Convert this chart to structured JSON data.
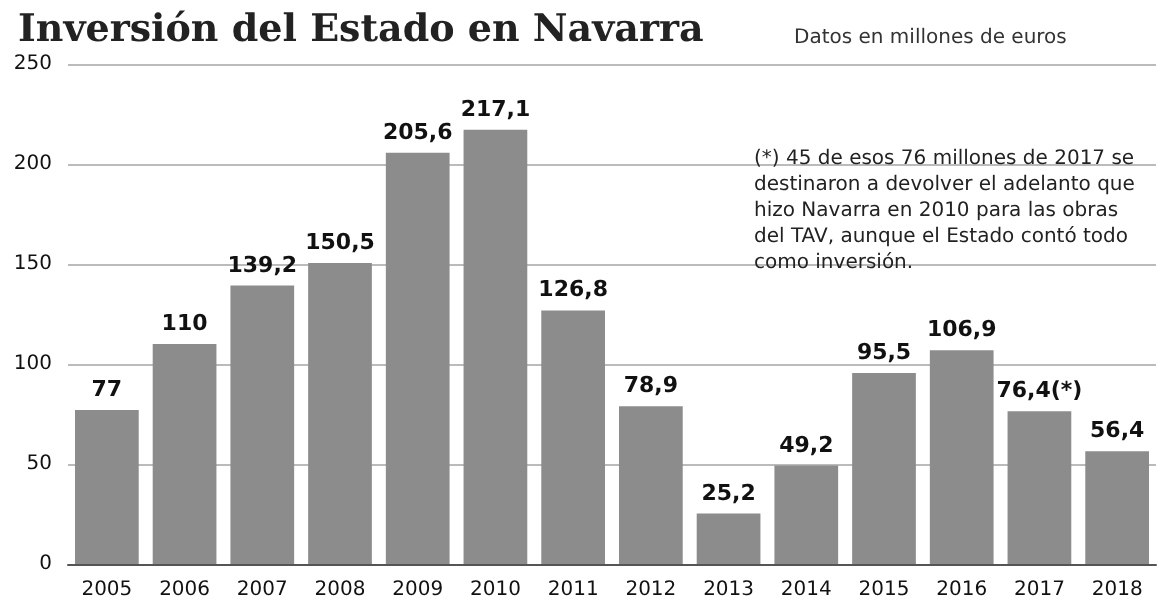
{
  "chart_data": {
    "type": "bar",
    "title": "Inversión del Estado en Navarra",
    "subtitle": "Datos en millones de euros",
    "categories": [
      "2005",
      "2006",
      "2007",
      "2008",
      "2009",
      "2010",
      "2011",
      "2012",
      "2013",
      "2014",
      "2015",
      "2016",
      "2017",
      "2018"
    ],
    "values": [
      77,
      110,
      139.2,
      150.5,
      205.6,
      217.1,
      126.8,
      78.9,
      25.2,
      49.2,
      95.5,
      106.9,
      76.4,
      56.4
    ],
    "value_labels": [
      "77",
      "110",
      "139,2",
      "150,5",
      "205,6",
      "217,1",
      "126,8",
      "78,9",
      "25,2",
      "49,2",
      "95,5",
      "106,9",
      "76,4(*)",
      "56,4"
    ],
    "color": "#8c8c8c",
    "ylim": [
      0,
      250
    ],
    "yticks": [
      0,
      50,
      100,
      150,
      200,
      250
    ],
    "grid": "y",
    "annotations": [
      "(*) 45 de esos 76 millones de 2017 se destinaron a devolver el adelanto que hizo Navarra en 2010 para las obras del TAV, aunque el Estado contó todo como inversión."
    ]
  }
}
